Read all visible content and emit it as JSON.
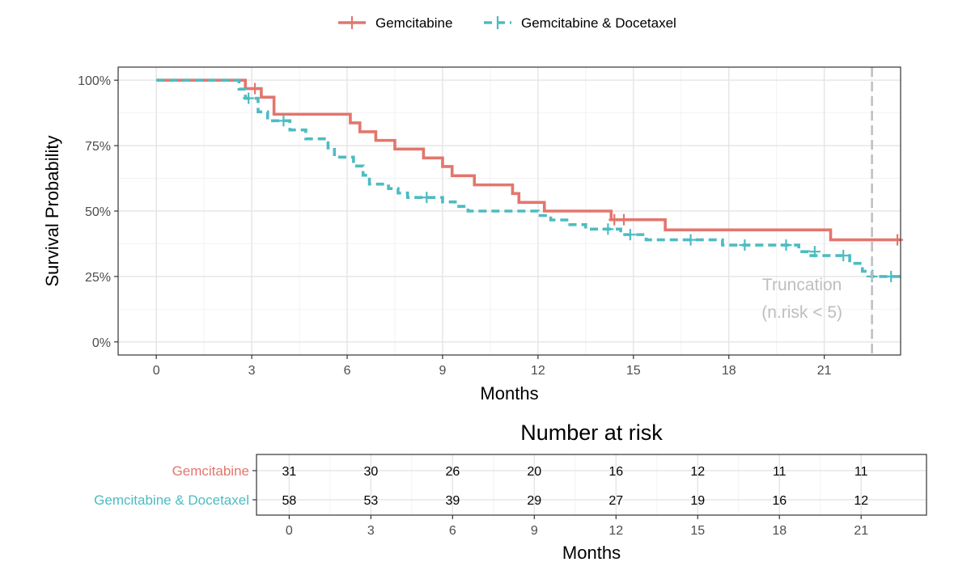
{
  "chart_data": [
    {
      "type": "line",
      "subtype": "kaplan-meier-step",
      "xlabel": "Months",
      "ylabel": "Survival Probability",
      "xlim": [
        -1.2,
        23.4
      ],
      "ylim": [
        -0.05,
        1.05
      ],
      "xticks": [
        0,
        3,
        6,
        9,
        12,
        15,
        18,
        21
      ],
      "xtick_labels": [
        "0",
        "3",
        "6",
        "9",
        "12",
        "15",
        "18",
        "21"
      ],
      "yticks": [
        0,
        0.25,
        0.5,
        0.75,
        1.0
      ],
      "ytick_labels": [
        "0%",
        "25%",
        "50%",
        "75%",
        "100%"
      ],
      "grid": true,
      "legend_position": "top",
      "series": [
        {
          "name": "Gemcitabine",
          "color": "#E2766D",
          "line_style": "solid",
          "steps": [
            [
              0,
              1.0
            ],
            [
              2.8,
              0.968
            ],
            [
              3.3,
              0.935
            ],
            [
              3.7,
              0.87
            ],
            [
              6.1,
              0.837
            ],
            [
              6.4,
              0.803
            ],
            [
              6.9,
              0.77
            ],
            [
              7.5,
              0.737
            ],
            [
              8.4,
              0.703
            ],
            [
              9.0,
              0.67
            ],
            [
              9.3,
              0.635
            ],
            [
              10.0,
              0.6
            ],
            [
              11.2,
              0.567
            ],
            [
              11.4,
              0.533
            ],
            [
              12.2,
              0.5
            ],
            [
              14.3,
              0.467
            ],
            [
              16.0,
              0.428
            ],
            [
              21.2,
              0.39
            ],
            [
              23.4,
              0.39
            ]
          ],
          "censored": [
            [
              3.1,
              0.968
            ],
            [
              14.4,
              0.467
            ],
            [
              14.7,
              0.467
            ],
            [
              23.3,
              0.39
            ]
          ]
        },
        {
          "name": "Gemcitabine & Docetaxel",
          "color": "#4DBCC1",
          "line_style": "dashed",
          "steps": [
            [
              0,
              1.0
            ],
            [
              2.6,
              0.966
            ],
            [
              2.8,
              0.931
            ],
            [
              3.2,
              0.879
            ],
            [
              3.5,
              0.845
            ],
            [
              4.2,
              0.81
            ],
            [
              4.7,
              0.776
            ],
            [
              5.4,
              0.741
            ],
            [
              5.6,
              0.706
            ],
            [
              6.2,
              0.672
            ],
            [
              6.5,
              0.637
            ],
            [
              6.7,
              0.603
            ],
            [
              7.3,
              0.586
            ],
            [
              7.6,
              0.569
            ],
            [
              7.9,
              0.552
            ],
            [
              9.0,
              0.535
            ],
            [
              9.4,
              0.518
            ],
            [
              9.8,
              0.5
            ],
            [
              12.0,
              0.483
            ],
            [
              12.4,
              0.466
            ],
            [
              13.0,
              0.448
            ],
            [
              13.5,
              0.431
            ],
            [
              14.6,
              0.41
            ],
            [
              15.4,
              0.39
            ],
            [
              17.8,
              0.37
            ],
            [
              20.2,
              0.345
            ],
            [
              20.5,
              0.33
            ],
            [
              21.8,
              0.3
            ],
            [
              22.2,
              0.27
            ],
            [
              22.5,
              0.25
            ],
            [
              23.4,
              0.25
            ]
          ],
          "censored": [
            [
              2.9,
              0.931
            ],
            [
              4.0,
              0.845
            ],
            [
              8.5,
              0.552
            ],
            [
              14.2,
              0.431
            ],
            [
              14.9,
              0.41
            ],
            [
              16.8,
              0.39
            ],
            [
              18.5,
              0.37
            ],
            [
              19.8,
              0.37
            ],
            [
              20.7,
              0.345
            ],
            [
              21.6,
              0.33
            ],
            [
              22.5,
              0.25
            ],
            [
              23.1,
              0.25
            ]
          ]
        }
      ],
      "annotations": [
        {
          "type": "vline",
          "x": 22.5,
          "color": "#BEBEBE",
          "line_style": "dashed"
        },
        {
          "type": "text",
          "x": 20.3,
          "y": 0.235,
          "lines": [
            "Truncation",
            "(n.risk < 5)"
          ],
          "color": "#BEBEBE"
        }
      ]
    },
    {
      "type": "table",
      "title": "Number at risk",
      "xlabel": "Months",
      "xlim": [
        -1.2,
        23.4
      ],
      "xticks": [
        0,
        3,
        6,
        9,
        12,
        15,
        18,
        21
      ],
      "xtick_labels": [
        "0",
        "3",
        "6",
        "9",
        "12",
        "15",
        "18",
        "21"
      ],
      "rows": [
        {
          "name": "Gemcitabine",
          "color": "#E2766D",
          "values": [
            31,
            30,
            26,
            20,
            16,
            12,
            11,
            11
          ]
        },
        {
          "name": "Gemcitabine & Docetaxel",
          "color": "#4DBCC1",
          "values": [
            58,
            53,
            39,
            29,
            27,
            19,
            16,
            12
          ]
        }
      ]
    }
  ]
}
